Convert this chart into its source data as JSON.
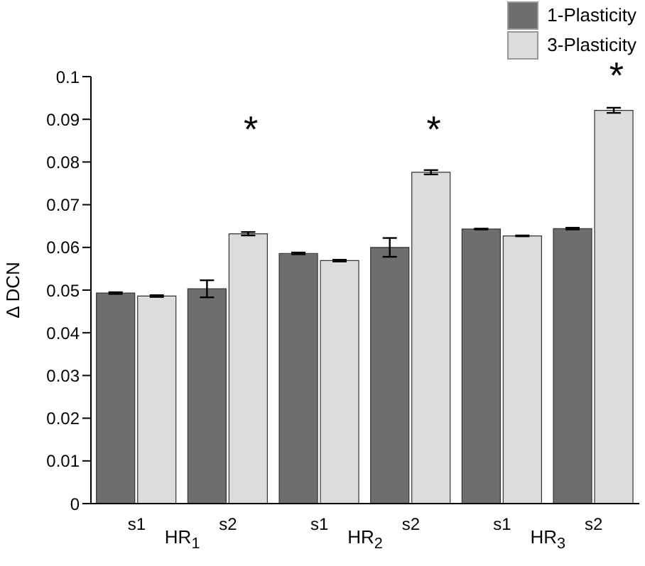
{
  "chart_data": {
    "type": "bar",
    "ylabel": "Δ DCN",
    "categories": [
      "s1",
      "s2",
      "s1",
      "s2",
      "s1",
      "s2"
    ],
    "series": [
      {
        "name": "1-Plasticity",
        "color": "#6e6e6e",
        "values": [
          0.0493,
          0.0503,
          0.0586,
          0.06,
          0.0643,
          0.0644
        ],
        "errors": [
          0.0002,
          0.002,
          0.0002,
          0.0022,
          0.0001,
          0.0002
        ]
      },
      {
        "name": "3-Plasticity",
        "color": "#dcdcdc",
        "values": [
          0.0486,
          0.0632,
          0.0569,
          0.0776,
          0.0627,
          0.0921
        ],
        "errors": [
          0.0002,
          0.0004,
          0.0002,
          0.0005,
          0.0001,
          0.0006
        ]
      }
    ],
    "ylim": [
      0,
      0.1
    ],
    "yticks": [
      0,
      0.01,
      0.02,
      0.03,
      0.04,
      0.05,
      0.06,
      0.07,
      0.08,
      0.09,
      0.1
    ],
    "grid": false,
    "legend": "top right",
    "annotations": [
      "HR$_{1}$",
      "HR$_{2}$",
      "HR$_{3}$",
      "*",
      "*",
      "*"
    ]
  }
}
